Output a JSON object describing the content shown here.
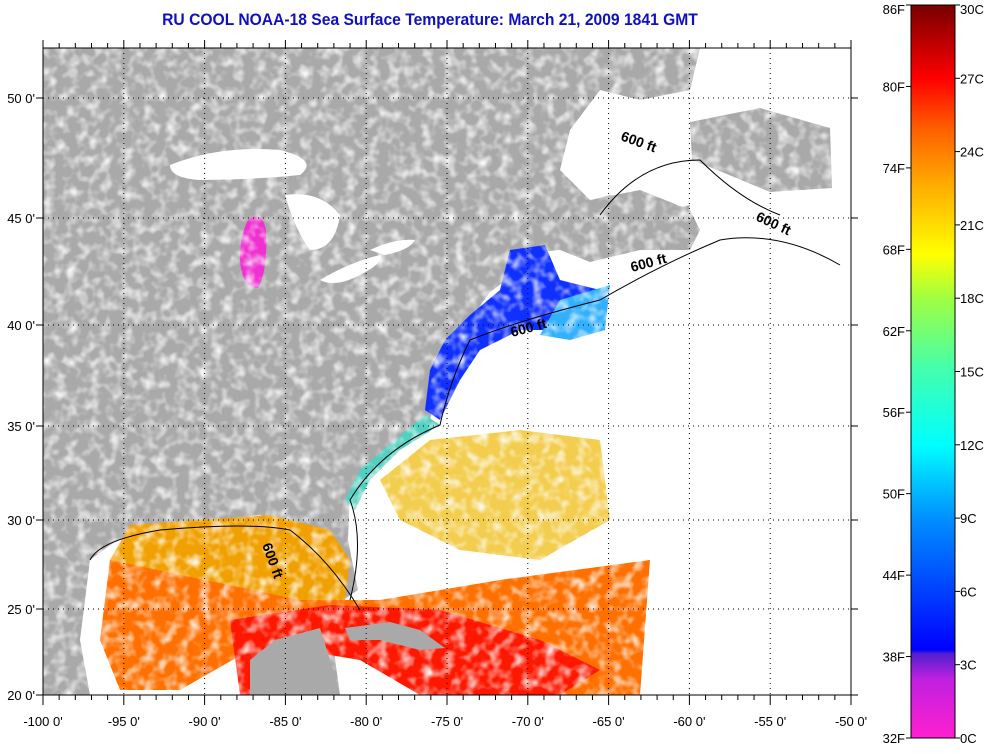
{
  "title": "RU COOL  NOAA-18  Sea Surface Temperature:  March 21, 2009 1841 GMT",
  "map": {
    "lat_labels": [
      "20 0'",
      "25 0'",
      "30 0'",
      "35 0'",
      "40 0'",
      "45 0'",
      "50 0'"
    ],
    "lon_labels": [
      "-100 0'",
      "-95 0'",
      "-90 0'",
      "-85 0'",
      "-80 0'",
      "-75 0'",
      "-70 0'",
      "-65 0'",
      "-60 0'",
      "-55 0'",
      "-50 0'"
    ],
    "contour_labels": [
      "600 ft",
      "600 ft",
      "600 ft",
      "600 ft",
      "600 ft"
    ],
    "land_color": "#a9a9a9",
    "ocean_color": "#ffffff"
  },
  "colorbar": {
    "fahrenheit_labels": [
      "86F",
      "80F",
      "74F",
      "68F",
      "62F",
      "56F",
      "50F",
      "44F",
      "38F",
      "32F"
    ],
    "celsius_labels": [
      "30C",
      "27C",
      "24C",
      "21C",
      "18C",
      "15C",
      "12C",
      "9C",
      "6C",
      "3C",
      "0C"
    ],
    "range_c": [
      0,
      30
    ]
  }
}
